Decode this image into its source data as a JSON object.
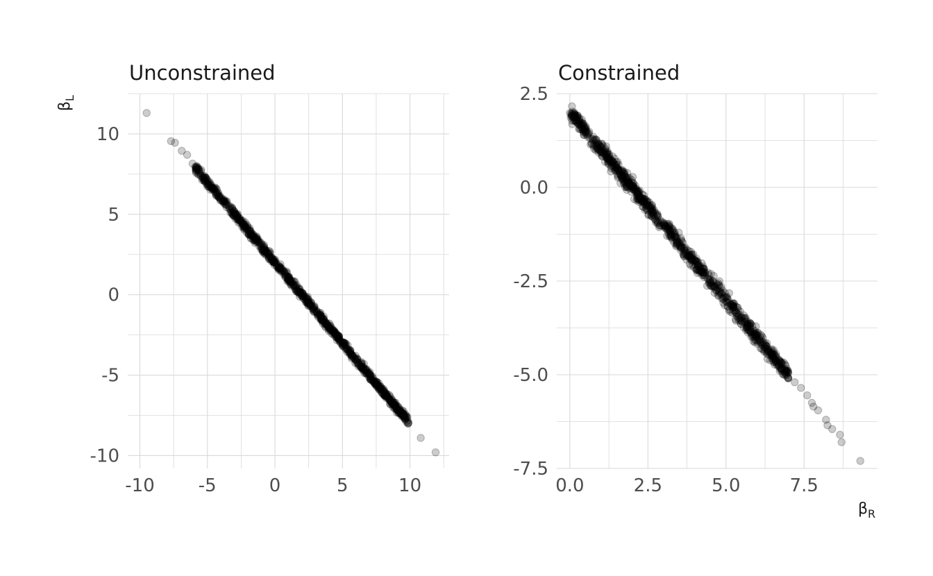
{
  "chart_data": [
    {
      "type": "scatter",
      "title": "Unconstrained",
      "xlim": [
        -10.9,
        12.9
      ],
      "ylim": [
        -10.8,
        12.5
      ],
      "x_ticks": [
        -10,
        -5,
        0,
        5,
        10
      ],
      "x_tick_labels": [
        "-10",
        "-5",
        "0",
        "5",
        "10"
      ],
      "y_ticks": [
        -10,
        -5,
        0,
        5,
        10
      ],
      "y_tick_labels": [
        "-10",
        "-5",
        "0",
        "5",
        "10"
      ],
      "ylabel": "β",
      "ylabel_sub": "L",
      "grid": true,
      "marker": {
        "color": "#000000",
        "alpha": 0.2
      },
      "trend": {
        "slope": -1,
        "intercept": 2,
        "x_range": [
          -5.9,
          9.9
        ],
        "spread": 0.12
      },
      "outliers": [
        [
          -9.5,
          11.3
        ],
        [
          -7.7,
          9.55
        ],
        [
          -7.4,
          9.45
        ],
        [
          -6.9,
          8.95
        ],
        [
          -6.5,
          8.7
        ],
        [
          -6.1,
          8.15
        ],
        [
          -5.8,
          7.95
        ],
        [
          9.3,
          -7.3
        ],
        [
          9.9,
          -7.95
        ],
        [
          10.8,
          -8.9
        ],
        [
          11.9,
          -9.8
        ]
      ]
    },
    {
      "type": "scatter",
      "title": "Constrained",
      "xlim": [
        -0.42,
        9.85
      ],
      "ylim": [
        -7.5,
        2.5
      ],
      "x_ticks": [
        0,
        2.5,
        5,
        7.5
      ],
      "x_tick_labels": [
        "0.0",
        "2.5",
        "5.0",
        "7.5"
      ],
      "y_ticks": [
        2.5,
        0,
        -2.5,
        -5,
        -7.5
      ],
      "y_tick_labels": [
        "2.5",
        "0.0",
        "-2.5",
        "-5.0",
        "-7.5"
      ],
      "xlabel": "β",
      "xlabel_sub": "R",
      "grid": true,
      "marker": {
        "color": "#000000",
        "alpha": 0.2
      },
      "trend": {
        "slope": -1,
        "intercept": 2,
        "x_range": [
          0,
          7.0
        ],
        "spread": 0.1
      },
      "outliers": [
        [
          7.2,
          -5.2
        ],
        [
          7.4,
          -5.35
        ],
        [
          7.6,
          -5.55
        ],
        [
          7.75,
          -5.75
        ],
        [
          7.8,
          -5.85
        ],
        [
          7.95,
          -5.95
        ],
        [
          8.2,
          -6.2
        ],
        [
          8.25,
          -6.35
        ],
        [
          8.4,
          -6.45
        ],
        [
          8.65,
          -6.6
        ],
        [
          8.7,
          -6.8
        ],
        [
          9.3,
          -7.3
        ]
      ]
    }
  ]
}
